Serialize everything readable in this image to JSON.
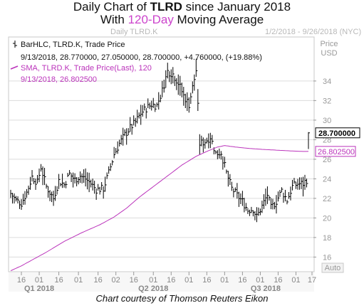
{
  "title": {
    "prefix": "Daily Chart of ",
    "ticker": "TLRD",
    "suffix": " since January 2018",
    "line2_prefix": "With ",
    "line2_accent": "120-Day",
    "line2_suffix": " Moving Average"
  },
  "subheader": {
    "left": "Daily TLRD.K",
    "right": "1/2/2018 - 9/26/2018 (NYC)"
  },
  "legend": {
    "bar_line1": "BarHLC, TLRD.K, Trade Price",
    "bar_line2": "9/13/2018, 28.770000, 27.050000, 28.700000, +4.760000, (+19.88%)",
    "sma_line1": "SMA, TLRD.K, Trade Price(Last), 120",
    "sma_line2": "9/13/2018, 26.802500"
  },
  "price_label": {
    "line1": "Price",
    "line2": "USD"
  },
  "auto_label": "Auto",
  "credit": "Chart courtesy of Thomson Reuters Eikon",
  "colors": {
    "price": "#000000",
    "sma": "#bb33bb",
    "grid": "#dcdcdc",
    "axis_text": "#999999",
    "date_text": "#888888"
  },
  "chart_data": {
    "type": "line",
    "y_axis": {
      "min": 14.5,
      "max": 38.5,
      "ticks": [
        16,
        18,
        20,
        22,
        24,
        26,
        28,
        30,
        32,
        34
      ]
    },
    "last_price": 28.7,
    "last_sma": 26.8025,
    "x_tick_labels": [
      {
        "i": 6,
        "label": "16"
      },
      {
        "i": 16,
        "label": "01"
      },
      {
        "i": 27,
        "label": "16"
      },
      {
        "i": 38,
        "label": "01"
      },
      {
        "i": 49,
        "label": "16"
      },
      {
        "i": 59,
        "label": "02"
      },
      {
        "i": 69,
        "label": "16"
      },
      {
        "i": 80,
        "label": "01"
      },
      {
        "i": 90,
        "label": "16"
      },
      {
        "i": 100,
        "label": "01"
      },
      {
        "i": 110,
        "label": "16"
      },
      {
        "i": 120,
        "label": "01"
      },
      {
        "i": 130,
        "label": "16"
      },
      {
        "i": 140,
        "label": "01"
      },
      {
        "i": 150,
        "label": "16"
      },
      {
        "i": 160,
        "label": "01"
      },
      {
        "i": 169,
        "label": "17"
      }
    ],
    "period_labels": [
      {
        "i": 16,
        "label": "Q1 2018"
      },
      {
        "i": 80,
        "label": "Q2 2018"
      },
      {
        "i": 143,
        "label": "Q3 2018"
      }
    ],
    "close_anchors": [
      [
        0,
        22.5
      ],
      [
        3,
        21.8
      ],
      [
        6,
        21.5
      ],
      [
        9,
        22.6
      ],
      [
        12,
        24.2
      ],
      [
        15,
        23.6
      ],
      [
        17,
        25.2
      ],
      [
        20,
        23.2
      ],
      [
        24,
        22.0
      ],
      [
        27,
        23.8
      ],
      [
        30,
        23.4
      ],
      [
        33,
        24.5
      ],
      [
        36,
        23.9
      ],
      [
        39,
        24.3
      ],
      [
        42,
        24.0
      ],
      [
        45,
        23.5
      ],
      [
        48,
        22.9
      ],
      [
        52,
        23.0
      ],
      [
        55,
        24.6
      ],
      [
        58,
        26.5
      ],
      [
        61,
        27.6
      ],
      [
        64,
        28.5
      ],
      [
        67,
        29.2
      ],
      [
        70,
        29.8
      ],
      [
        73,
        30.7
      ],
      [
        76,
        31.2
      ],
      [
        79,
        31.6
      ],
      [
        82,
        31.5
      ],
      [
        85,
        33.0
      ],
      [
        88,
        35.0
      ],
      [
        91,
        34.7
      ],
      [
        94,
        33.8
      ],
      [
        97,
        32.5
      ],
      [
        100,
        31.6
      ],
      [
        103,
        34.2
      ],
      [
        104,
        35.1
      ],
      [
        106,
        27.6
      ],
      [
        109,
        27.8
      ],
      [
        112,
        28.3
      ],
      [
        115,
        26.6
      ],
      [
        118,
        26.7
      ],
      [
        121,
        24.6
      ],
      [
        124,
        23.0
      ],
      [
        127,
        22.3
      ],
      [
        130,
        21.7
      ],
      [
        133,
        20.8
      ],
      [
        136,
        20.9
      ],
      [
        138,
        20.1
      ],
      [
        141,
        21.2
      ],
      [
        144,
        22.4
      ],
      [
        146,
        21.0
      ],
      [
        149,
        21.7
      ],
      [
        152,
        22.8
      ],
      [
        155,
        21.8
      ],
      [
        158,
        23.2
      ],
      [
        161,
        23.5
      ],
      [
        164,
        23.5
      ],
      [
        166,
        23.9
      ],
      [
        167,
        28.7
      ]
    ],
    "sma_anchors": [
      [
        0,
        14.6
      ],
      [
        6,
        15.1
      ],
      [
        12,
        15.7
      ],
      [
        20,
        16.5
      ],
      [
        30,
        17.6
      ],
      [
        40,
        18.5
      ],
      [
        50,
        19.3
      ],
      [
        58,
        20.1
      ],
      [
        65,
        21.0
      ],
      [
        72,
        22.1
      ],
      [
        80,
        23.2
      ],
      [
        88,
        24.3
      ],
      [
        96,
        25.4
      ],
      [
        104,
        26.3
      ],
      [
        110,
        26.8
      ],
      [
        116,
        27.25
      ],
      [
        120,
        27.4
      ],
      [
        126,
        27.25
      ],
      [
        134,
        27.1
      ],
      [
        142,
        27.0
      ],
      [
        150,
        26.92
      ],
      [
        158,
        26.84
      ],
      [
        164,
        26.8
      ],
      [
        167,
        26.8025
      ]
    ],
    "bar_count": 168
  }
}
